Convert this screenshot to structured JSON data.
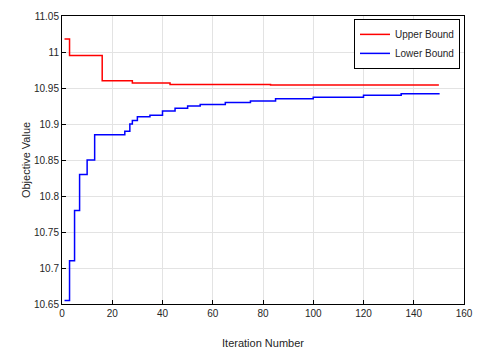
{
  "chart_data": {
    "type": "line",
    "x_label": "Iteration Number",
    "y_label": "Objective Value",
    "series": [
      {
        "name": "Upper Bound",
        "color": "#ff0000",
        "line_style": "solid",
        "x": [
          1,
          3,
          16,
          28,
          43,
          83,
          150
        ],
        "values": [
          11.018,
          10.995,
          10.96,
          10.957,
          10.955,
          10.954,
          10.954
        ]
      },
      {
        "name": "Lower Bound",
        "color": "#0000ff",
        "line_style": "solid",
        "x": [
          1,
          3,
          5,
          7,
          10,
          13,
          17,
          25,
          27,
          28,
          30,
          35,
          40,
          45,
          50,
          55,
          65,
          75,
          85,
          100,
          120,
          135,
          150
        ],
        "values": [
          10.655,
          10.71,
          10.78,
          10.83,
          10.85,
          10.885,
          10.885,
          10.89,
          10.9,
          10.905,
          10.91,
          10.912,
          10.918,
          10.922,
          10.925,
          10.927,
          10.93,
          10.932,
          10.935,
          10.937,
          10.94,
          10.942,
          10.943
        ]
      }
    ],
    "xlim": [
      0,
      160
    ],
    "xticks": [
      0,
      20,
      40,
      60,
      80,
      100,
      120,
      140,
      160
    ],
    "ylim": [
      10.65,
      11.05
    ],
    "yticks": [
      10.65,
      10.7,
      10.75,
      10.8,
      10.85,
      10.9,
      10.95,
      11,
      11.05
    ],
    "grid": true,
    "legend": "top-right"
  }
}
